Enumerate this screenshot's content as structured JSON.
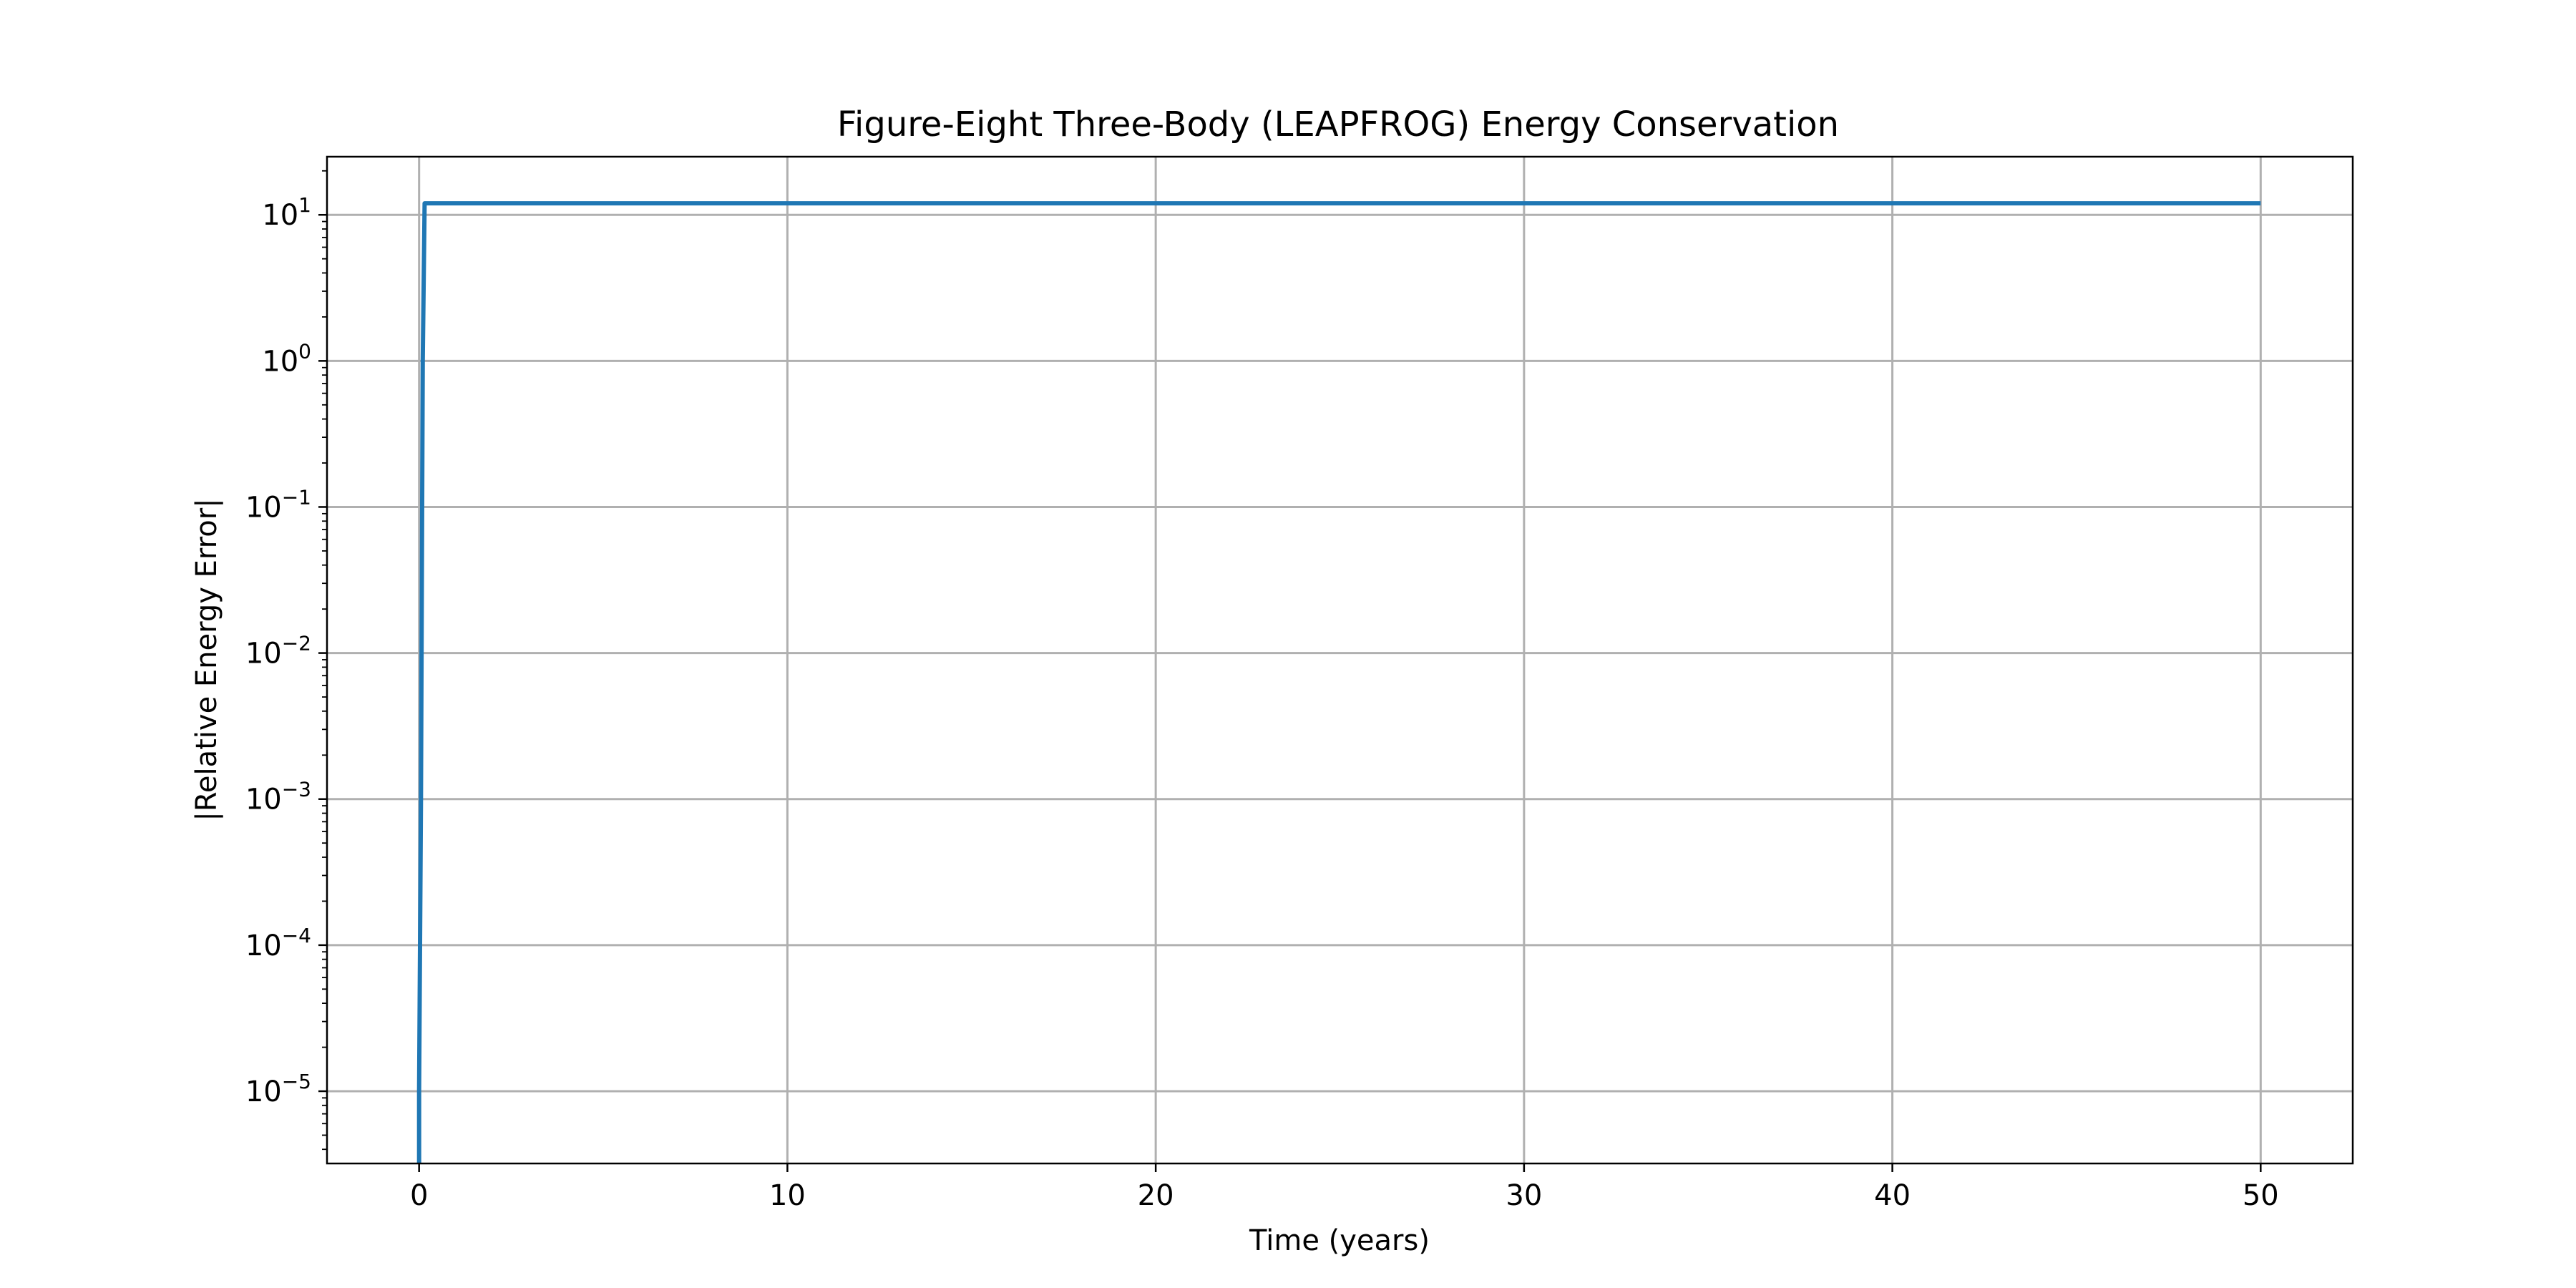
{
  "chart_data": {
    "type": "line",
    "title": "Figure-Eight Three-Body (LEAPFROG) Energy Conservation",
    "xlabel": "Time (years)",
    "ylabel": "|Relative Energy Error|",
    "xlim": [
      -2.5,
      52.5
    ],
    "ylim": [
      3.2e-06,
      25
    ],
    "yscale": "log",
    "grid": true,
    "x_ticks": [
      0,
      10,
      20,
      30,
      40,
      50
    ],
    "x_tick_labels": [
      "0",
      "10",
      "20",
      "30",
      "40",
      "50"
    ],
    "y_ticks": [
      {
        "value": 1e-05,
        "base": "10",
        "exp": "−5"
      },
      {
        "value": 0.0001,
        "base": "10",
        "exp": "−4"
      },
      {
        "value": 0.001,
        "base": "10",
        "exp": "−3"
      },
      {
        "value": 0.01,
        "base": "10",
        "exp": "−2"
      },
      {
        "value": 0.1,
        "base": "10",
        "exp": "−1"
      },
      {
        "value": 1,
        "base": "10",
        "exp": "0"
      },
      {
        "value": 10,
        "base": "10",
        "exp": "1"
      }
    ],
    "series": [
      {
        "color": "#1f77b4",
        "x": [
          0.0,
          0.0,
          0.05,
          0.1,
          0.15,
          50.0
        ],
        "y": [
          3.2e-06,
          1e-05,
          0.001,
          1.0,
          12.0,
          12.0
        ]
      }
    ]
  }
}
